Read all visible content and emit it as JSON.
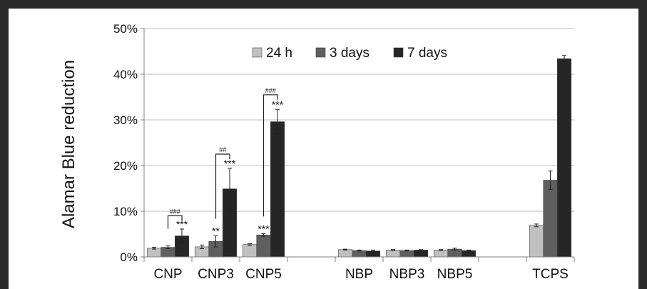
{
  "chart_data": {
    "type": "bar",
    "ylabel": "Alamar Blue reduction",
    "ylim": [
      0,
      50
    ],
    "yticks": [
      "0%",
      "10%",
      "20%",
      "30%",
      "40%",
      "50%"
    ],
    "grid": true,
    "legend_position": "top-center",
    "categories": [
      "CNP",
      "CNP3",
      "CNP5",
      "",
      "NBP",
      "NBP3",
      "NBP5",
      "",
      "TCPS"
    ],
    "series": [
      {
        "name": "24 h",
        "color": "#c0c0c0",
        "values": [
          1.9,
          2.2,
          2.7,
          null,
          1.6,
          1.5,
          1.5,
          null,
          6.9
        ],
        "errors": [
          0.2,
          0.4,
          0.2,
          null,
          0.1,
          0.1,
          0.1,
          null,
          0.3
        ]
      },
      {
        "name": "3 days",
        "color": "#5f5f5f",
        "values": [
          2.1,
          3.4,
          4.8,
          null,
          1.4,
          1.4,
          1.7,
          null,
          16.8
        ],
        "errors": [
          0.3,
          1.2,
          0.3,
          null,
          0.1,
          0.1,
          0.2,
          null,
          2.0
        ]
      },
      {
        "name": "7 days",
        "color": "#262626",
        "values": [
          4.6,
          14.9,
          29.6,
          null,
          1.3,
          1.5,
          1.4,
          null,
          43.4
        ],
        "errors": [
          1.5,
          4.5,
          2.7,
          null,
          0.2,
          0.1,
          0.1,
          null,
          0.7
        ]
      }
    ],
    "annotations": [
      {
        "text": "***",
        "category": 0,
        "series": 2
      },
      {
        "text": "###",
        "category": 0,
        "bracket": [
          1,
          2
        ],
        "y": 9.0
      },
      {
        "text": "**",
        "category": 1,
        "series": 1
      },
      {
        "text": "***",
        "category": 1,
        "series": 2
      },
      {
        "text": "##",
        "category": 1,
        "bracket": [
          1,
          2
        ],
        "y": 22.5
      },
      {
        "text": "***",
        "category": 2,
        "series": 1
      },
      {
        "text": "***",
        "category": 2,
        "series": 2
      },
      {
        "text": "###",
        "category": 2,
        "bracket": [
          1,
          2
        ],
        "y": 35.5
      }
    ]
  }
}
